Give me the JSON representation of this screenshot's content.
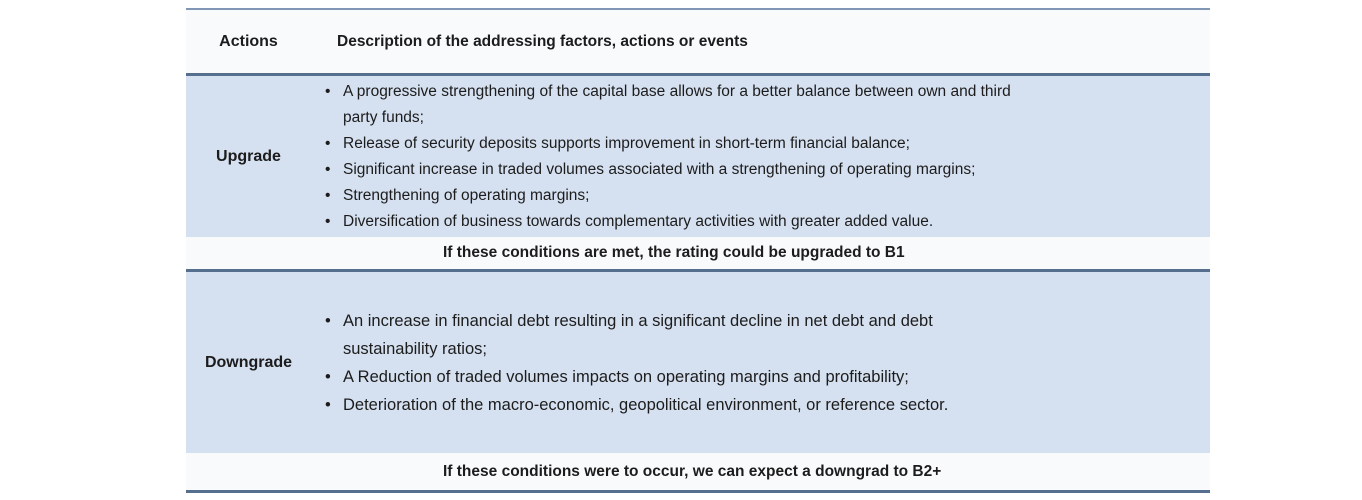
{
  "colors": {
    "row_blue": "#d5e0f0",
    "row_light": "#f8fafc",
    "border_dark": "#566f8e",
    "border_light": "#8096b4",
    "text": "#1c1c1c"
  },
  "table": {
    "header": {
      "actions_label": "Actions",
      "description_label": "Description of the addressing factors, actions or events"
    },
    "upgrade": {
      "label": "Upgrade",
      "bullets": [
        [
          "A progressive strengthening of the capital base allows for a better balance between own and third",
          "party funds;"
        ],
        "Release of security deposits supports improvement in short-term financial balance;",
        "Significant increase in traded volumes associated with a strengthening of operating margins;",
        "Strengthening of operating margins;",
        "Diversification of business towards complementary activities with greater added value."
      ],
      "note": "If these conditions are met, the rating could be upgraded to B1"
    },
    "downgrade": {
      "label": "Downgrade",
      "bullets": [
        [
          "An increase in financial debt resulting in a significant decline in net debt and debt",
          "sustainability ratios;"
        ],
        "A Reduction of traded volumes impacts on operating margins and profitability;",
        "Deterioration of the macro-economic, geopolitical environment, or reference sector."
      ],
      "note": "If these conditions were to occur, we can expect a downgrad to B2+"
    }
  }
}
